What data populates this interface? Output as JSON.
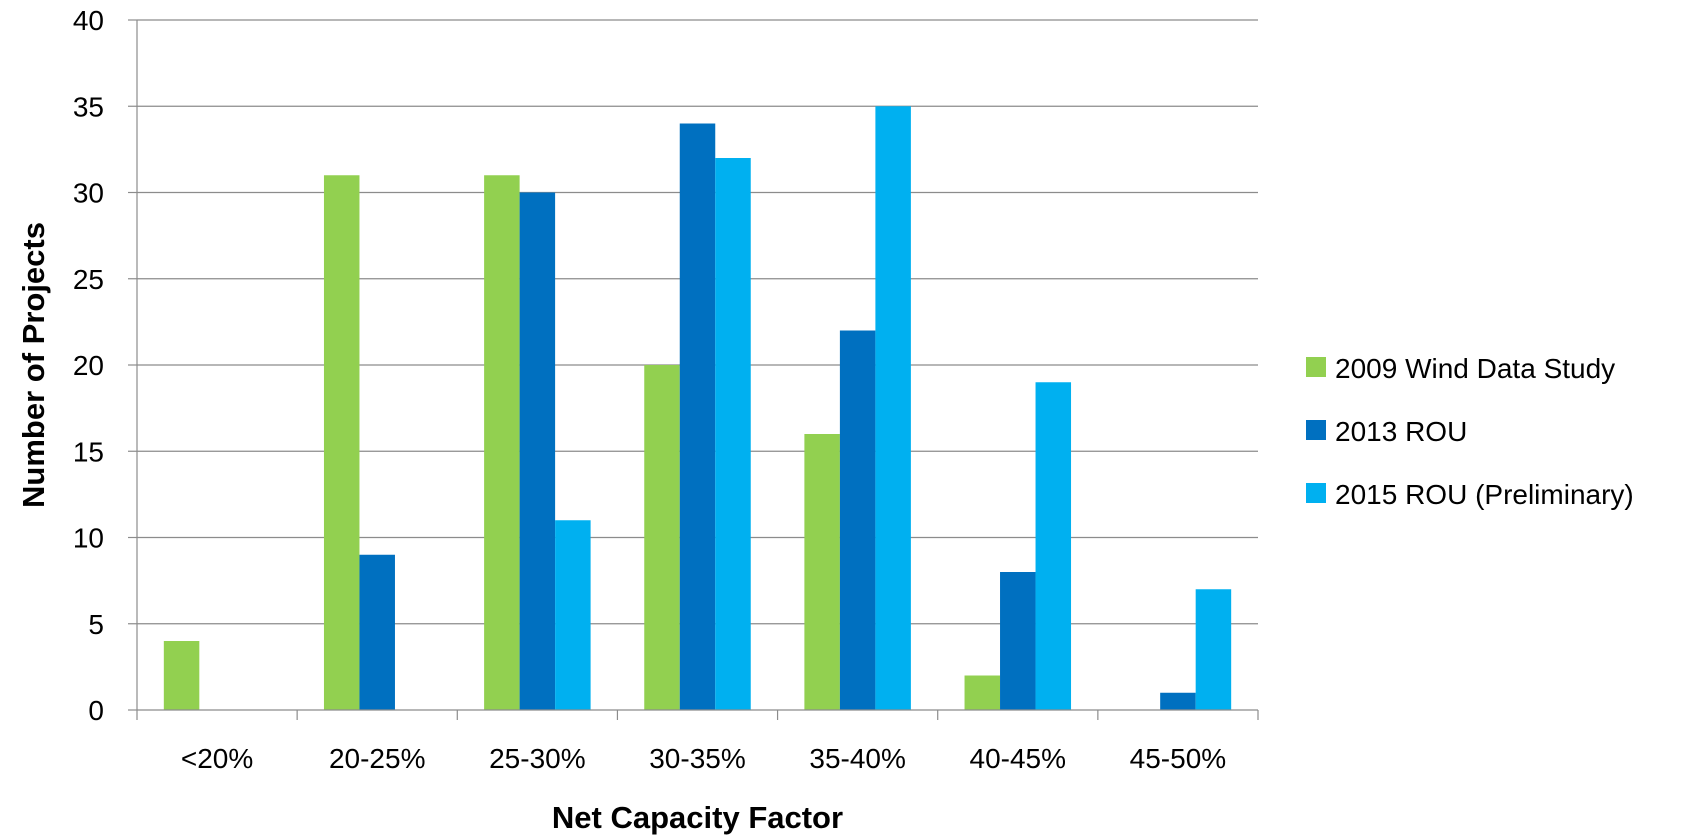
{
  "chart_data": {
    "type": "bar",
    "xlabel": "Net Capacity Factor",
    "ylabel": "Number of Projects",
    "categories": [
      "<20%",
      "20-25%",
      "25-30%",
      "30-35%",
      "35-40%",
      "40-45%",
      "45-50%"
    ],
    "ylim": [
      0,
      40
    ],
    "yticks": [
      0,
      5,
      10,
      15,
      20,
      25,
      30,
      35,
      40
    ],
    "grid": true,
    "legend_position": "right",
    "series": [
      {
        "name": "2009 Wind Data Study",
        "color": "#92D050",
        "values": [
          4,
          31,
          31,
          20,
          16,
          2,
          0
        ]
      },
      {
        "name": "2013 ROU",
        "color": "#0070C0",
        "values": [
          0,
          9,
          30,
          34,
          22,
          8,
          1
        ]
      },
      {
        "name": "2015 ROU (Preliminary)",
        "color": "#00B0F0",
        "values": [
          0,
          0,
          11,
          32,
          35,
          19,
          7
        ]
      }
    ]
  }
}
